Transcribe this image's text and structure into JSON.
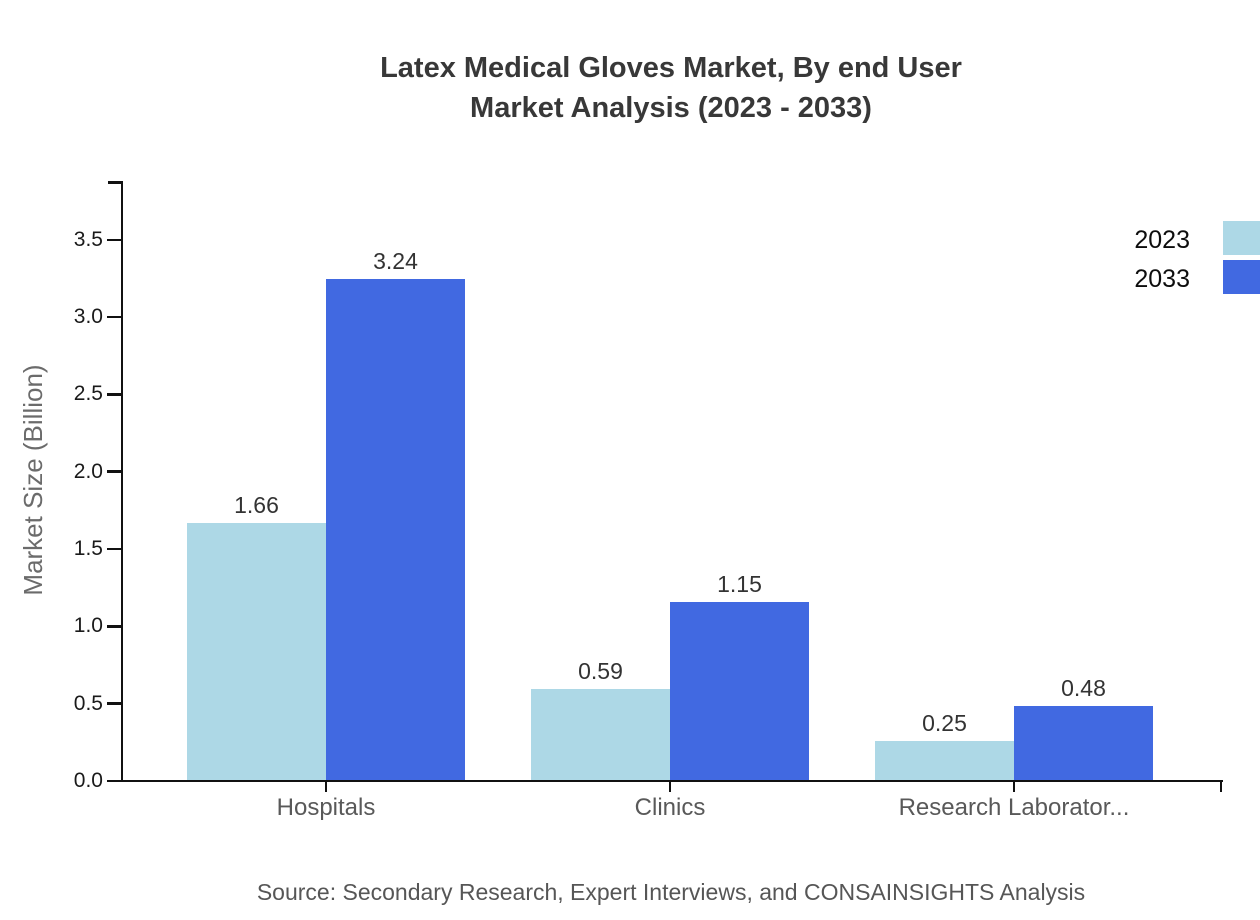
{
  "chart_data": {
    "type": "bar",
    "title": "Latex Medical Gloves Market, By end User Market Analysis (2023 - 2033)",
    "title_line1": "Latex Medical Gloves Market, By end User",
    "title_line2": "Market Analysis (2023 - 2033)",
    "ylabel": "Market Size (Billion)",
    "xlabel": "",
    "categories": [
      "Hospitals",
      "Clinics",
      "Research Laborator..."
    ],
    "series": [
      {
        "name": "2023",
        "color": "#ADD8E6",
        "values": [
          1.66,
          0.59,
          0.25
        ],
        "value_labels": [
          "1.66",
          "0.59",
          "0.25"
        ]
      },
      {
        "name": "2033",
        "color": "#4169E1",
        "values": [
          3.24,
          1.15,
          0.48
        ],
        "value_labels": [
          "3.24",
          "1.15",
          "0.48"
        ]
      }
    ],
    "y_ticks": [
      "0.0",
      "0.5",
      "1.0",
      "1.5",
      "2.0",
      "2.5",
      "3.0",
      "3.5"
    ],
    "ylim": [
      0,
      3.875
    ],
    "grid": false,
    "legend_position": "top-right",
    "legend": [
      {
        "label": "2023",
        "color": "#ADD8E6"
      },
      {
        "label": "2033",
        "color": "#4169E1"
      }
    ]
  },
  "footer": {
    "source": "Source: Secondary Research, Expert Interviews, and CONSAINSIGHTS Analysis"
  }
}
